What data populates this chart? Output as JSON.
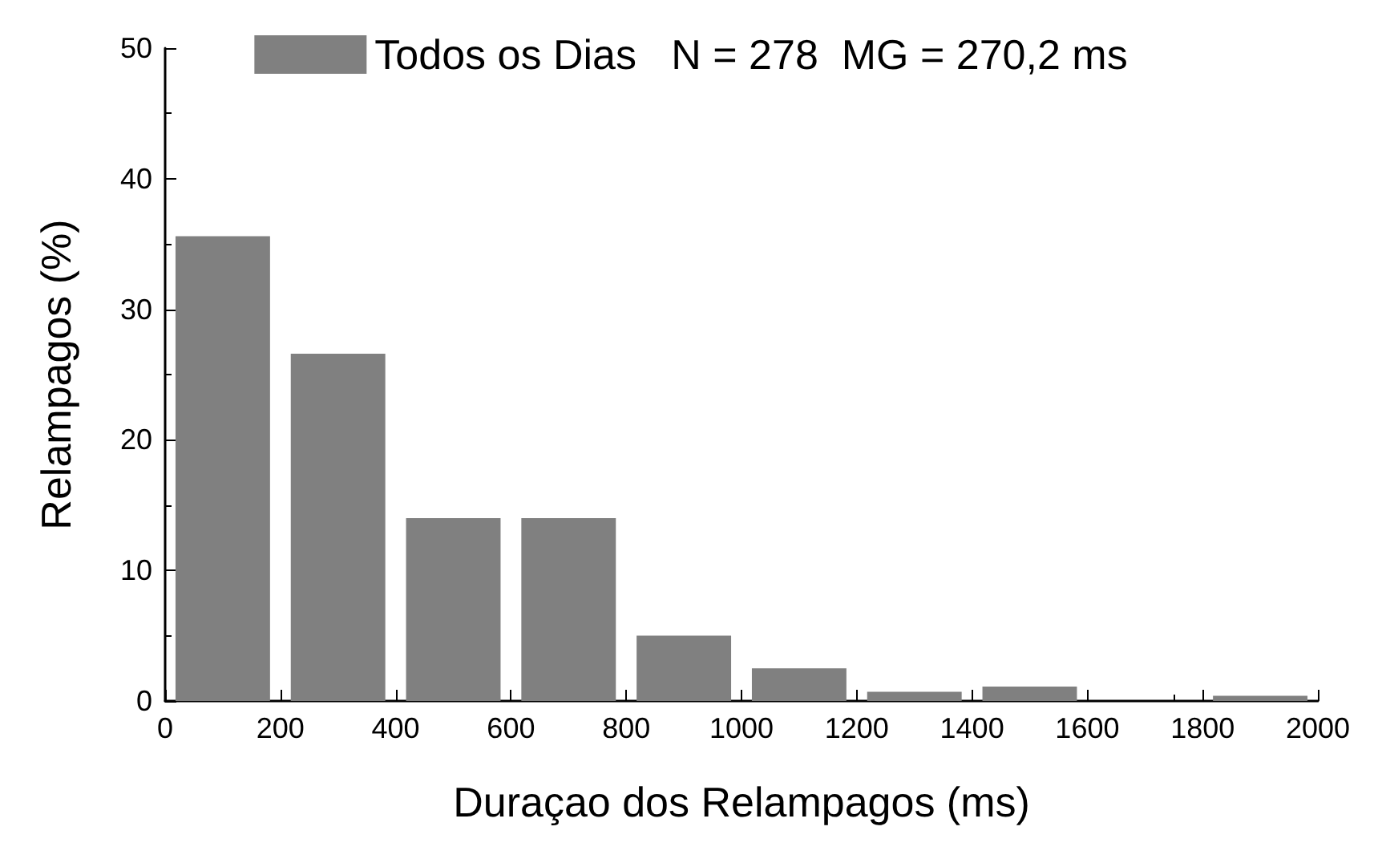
{
  "chart_data": {
    "type": "histogram",
    "xlabel": "Duraçao dos Relampagos (ms)",
    "ylabel": "Relampagos (%)",
    "bins": [
      0,
      200,
      400,
      600,
      800,
      1000,
      1200,
      1400,
      1600,
      1800,
      2000
    ],
    "series": [
      {
        "name": "Todos os Dias   N = 278  MG = 270,2 ms",
        "color": "#808080",
        "values": [
          35.6,
          26.6,
          14.0,
          14.0,
          5.0,
          2.5,
          0.7,
          1.1,
          0,
          0.4
        ]
      }
    ],
    "xlim": [
      0,
      2000
    ],
    "xticks": [
      0,
      200,
      400,
      600,
      800,
      1000,
      1200,
      1400,
      1600,
      1800,
      2000
    ],
    "ylim": [
      0,
      50
    ],
    "yticks": [
      0,
      10,
      20,
      30,
      40,
      50
    ],
    "grid": false,
    "legend": "top"
  }
}
